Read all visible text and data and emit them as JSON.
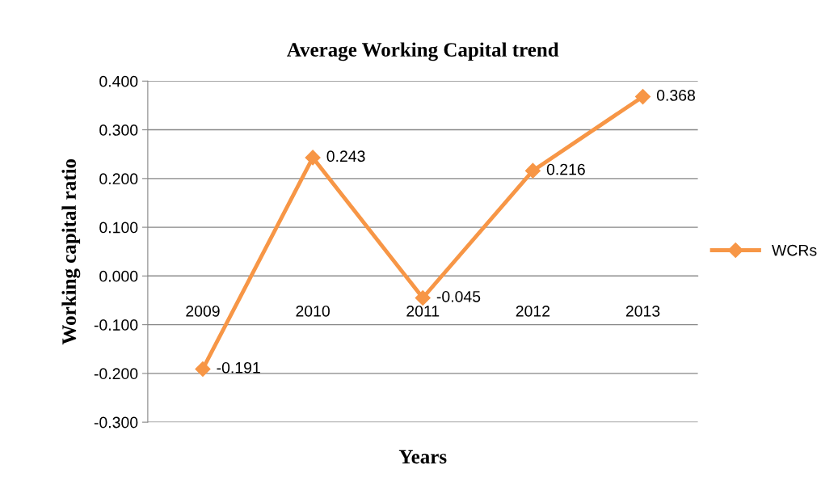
{
  "chart_data": {
    "type": "line",
    "title": "Average Working Capital trend",
    "xlabel": "Years",
    "ylabel": "Working capital ratio",
    "categories": [
      "2009",
      "2010",
      "2011",
      "2012",
      "2013"
    ],
    "series": [
      {
        "name": "WCRs",
        "color": "#f79646",
        "values": [
          -0.191,
          0.243,
          -0.045,
          0.216,
          0.368
        ]
      }
    ],
    "ylim": [
      -0.3,
      0.4
    ],
    "yticks": [
      {
        "value": -0.3,
        "label": "-0.300"
      },
      {
        "value": -0.2,
        "label": "-0.200"
      },
      {
        "value": -0.1,
        "label": "-0.100"
      },
      {
        "value": 0,
        "label": "0.000"
      },
      {
        "value": 0.1,
        "label": "0.100"
      },
      {
        "value": 0.2,
        "label": "0.200"
      },
      {
        "value": 0.3,
        "label": "0.300"
      },
      {
        "value": 0.4,
        "label": "0.400"
      }
    ],
    "grid": "y",
    "legend": "right",
    "marker": "diamond",
    "line_style": "solid",
    "data_labels": true
  }
}
